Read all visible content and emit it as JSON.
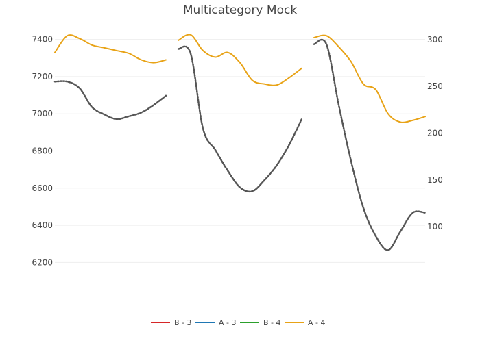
{
  "chart_data": {
    "type": "line",
    "title": "Multicategory Mock",
    "xlabel": "",
    "ylabel": "",
    "y_left": {
      "ticks": [
        6200,
        6400,
        6600,
        6800,
        7000,
        7200,
        7400
      ],
      "range": [
        6065,
        7465
      ]
    },
    "y_right": {
      "ticks": [
        100,
        150,
        200,
        250,
        300
      ],
      "range": [
        35,
        313
      ]
    },
    "x_range": [
      0,
      30
    ],
    "grid": true,
    "legend_position": "bottom",
    "series": [
      {
        "name": "B - 3",
        "color": "#d62728",
        "axis": "left",
        "segments": []
      },
      {
        "name": "A - 3",
        "color": "#1f77b4",
        "axis": "left",
        "segments": []
      },
      {
        "name": "B - 4",
        "color": "#2ca02c",
        "axis": "left",
        "segments": []
      },
      {
        "name": "A - 4",
        "color": "#e8a317",
        "axis": "left",
        "segments": [
          {
            "x": [
              0,
              1,
              2,
              3,
              4,
              5,
              6,
              7,
              8,
              9
            ],
            "y": [
              7330,
              7420,
              7405,
              7370,
              7355,
              7340,
              7325,
              7290,
              7275,
              7290
            ]
          },
          {
            "x": [
              10,
              11,
              12,
              13,
              14,
              15,
              16,
              17,
              18,
              19,
              20
            ],
            "y": [
              7395,
              7425,
              7340,
              7305,
              7330,
              7275,
              7180,
              7160,
              7155,
              7195,
              7245
            ]
          },
          {
            "x": [
              21,
              22,
              23,
              24,
              25,
              26,
              27,
              28,
              29,
              30
            ],
            "y": [
              7410,
              7420,
              7360,
              7280,
              7160,
              7130,
              7000,
              6955,
              6965,
              6985
            ]
          }
        ]
      },
      {
        "name": "",
        "color": "#555555",
        "dashed": true,
        "axis": "right",
        "segments": [
          {
            "x": [
              0,
              1,
              2,
              3,
              4,
              5,
              6,
              7,
              8,
              9
            ],
            "y": [
              255,
              255,
              248,
              228,
              220,
              215,
              218,
              222,
              230,
              240
            ]
          },
          {
            "x": [
              10,
              11,
              12,
              13,
              14,
              15,
              16,
              17,
              18,
              19,
              20
            ],
            "y": [
              290,
              285,
              205,
              182,
              160,
              142,
              138,
              150,
              166,
              188,
              215
            ]
          },
          {
            "x": [
              21,
              22,
              23,
              24,
              25,
              26,
              27,
              28,
              29,
              30
            ],
            "y": [
              295,
              295,
              230,
              170,
              120,
              90,
              75,
              95,
              115,
              115
            ]
          }
        ]
      }
    ]
  }
}
